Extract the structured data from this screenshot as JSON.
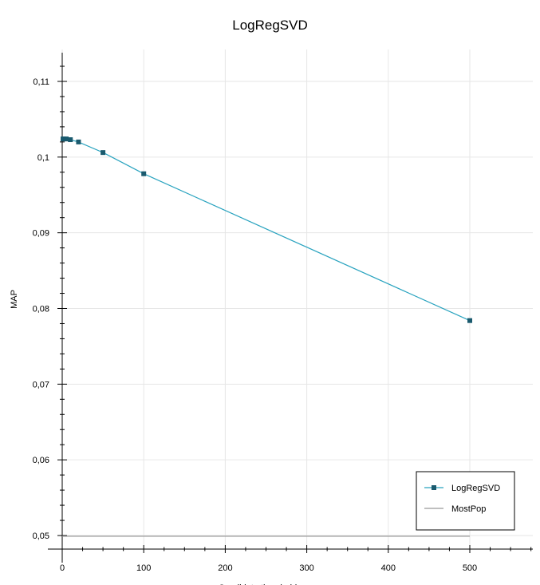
{
  "chart_data": {
    "type": "line",
    "title": "LogRegSVD",
    "xlabel": "Candidate threshold",
    "ylabel": "MAP",
    "xlim": [
      -10,
      580
    ],
    "ylim": [
      0.049,
      0.114
    ],
    "grid": true,
    "legend_position": "bottom-right",
    "x_ticks": [
      {
        "value": 0,
        "label": "0"
      },
      {
        "value": 100,
        "label": "100"
      },
      {
        "value": 200,
        "label": "200"
      },
      {
        "value": 300,
        "label": "300"
      },
      {
        "value": 400,
        "label": "400"
      },
      {
        "value": 500,
        "label": "500"
      }
    ],
    "y_ticks": [
      {
        "value": 0.05,
        "label": "0,05"
      },
      {
        "value": 0.06,
        "label": "0,06"
      },
      {
        "value": 0.07,
        "label": "0,07"
      },
      {
        "value": 0.08,
        "label": "0,08"
      },
      {
        "value": 0.09,
        "label": "0,09"
      },
      {
        "value": 0.1,
        "label": "0,1"
      },
      {
        "value": 0.11,
        "label": "0,11"
      }
    ],
    "series": [
      {
        "name": "LogRegSVD",
        "color": "#29a3bf",
        "marker_color": "#1a5a6e",
        "marker": "square",
        "x": [
          1,
          2,
          5,
          10,
          20,
          50,
          100,
          500
        ],
        "y": [
          0.1024,
          0.1024,
          0.1024,
          0.1023,
          0.102,
          0.1006,
          0.0978,
          0.0784
        ]
      },
      {
        "name": "MostPop",
        "color": "#999999",
        "marker": "none",
        "x": [
          0,
          500
        ],
        "y": [
          0.0499,
          0.0499
        ]
      }
    ]
  }
}
